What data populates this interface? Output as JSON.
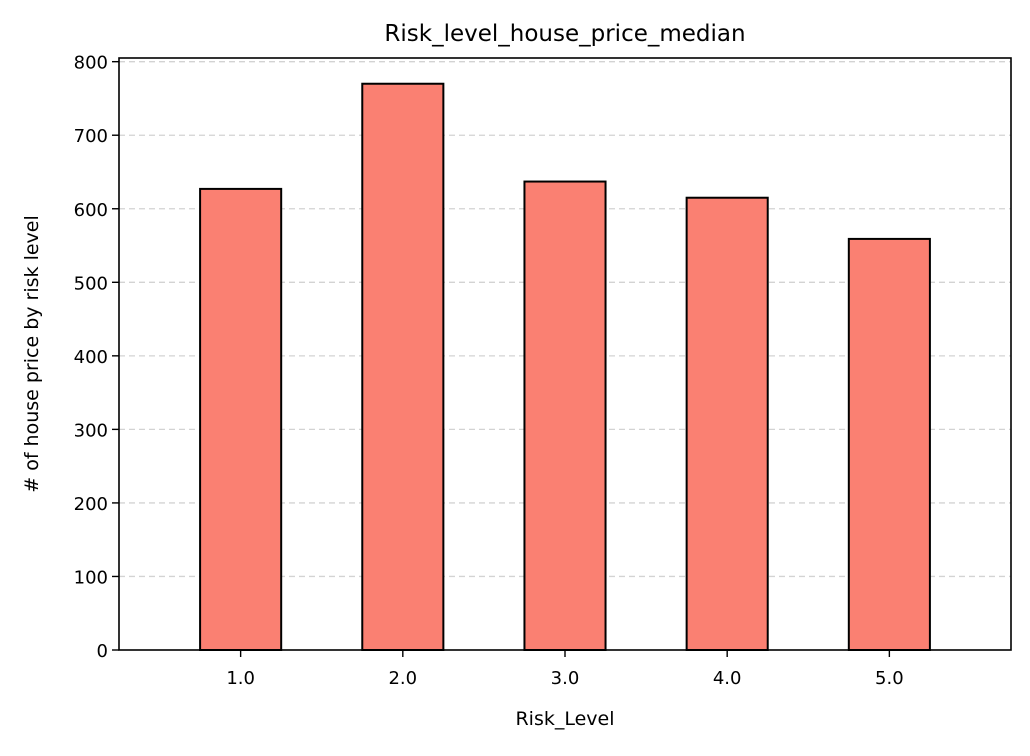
{
  "chart_data": {
    "type": "bar",
    "title": "Risk_level_house_price_median",
    "xlabel": "Risk_Level",
    "ylabel": "# of house price by risk level",
    "categories": [
      "1.0",
      "2.0",
      "3.0",
      "4.0",
      "5.0"
    ],
    "values": [
      627,
      770,
      637,
      615,
      559
    ],
    "ylim": [
      0,
      805
    ],
    "yticks": [
      0,
      100,
      200,
      300,
      400,
      500,
      600,
      700,
      800
    ],
    "grid": {
      "axis": "y",
      "style": "dashed"
    },
    "colors": {
      "bar_fill": "#fa8072",
      "bar_edge": "#000000",
      "grid": "#d3d3d3"
    }
  }
}
